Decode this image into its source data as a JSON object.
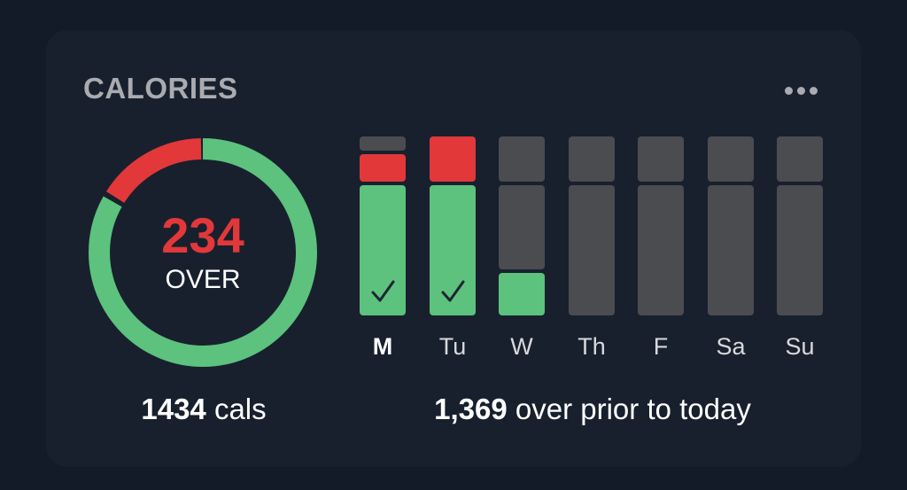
{
  "card": {
    "title": "CALORIES",
    "menu_icon": "more-horizontal-icon"
  },
  "ring": {
    "value": "234",
    "label": "OVER",
    "over_fraction": 0.163,
    "colors": {
      "within": "#5cc27d",
      "over": "#e2383a",
      "value_text": "#e2383a"
    }
  },
  "week": {
    "days": [
      {
        "label": "M",
        "active": true,
        "status": "complete",
        "within_fraction": 0.74,
        "over_fraction": 0.15
      },
      {
        "label": "Tu",
        "active": false,
        "status": "complete",
        "within_fraction": 0.74,
        "over_fraction": 0.25
      },
      {
        "label": "W",
        "active": false,
        "status": "partial",
        "within_fraction": 0.24,
        "over_fraction": 0
      },
      {
        "label": "Th",
        "active": false,
        "status": "empty",
        "within_fraction": 0,
        "over_fraction": 0
      },
      {
        "label": "F",
        "active": false,
        "status": "empty",
        "within_fraction": 0,
        "over_fraction": 0
      },
      {
        "label": "Sa",
        "active": false,
        "status": "empty",
        "within_fraction": 0,
        "over_fraction": 0
      },
      {
        "label": "Su",
        "active": false,
        "status": "empty",
        "within_fraction": 0,
        "over_fraction": 0
      }
    ],
    "goal_fraction": 0.74,
    "check_icon": "checkmark-icon",
    "colors": {
      "within": "#5cc27d",
      "over": "#e2383a",
      "empty": "#4b4c50",
      "check": "#1c2433"
    }
  },
  "footer": {
    "cals_value": "1434",
    "cals_unit": "cals",
    "over_value": "1,369",
    "over_text": "over prior to today"
  }
}
